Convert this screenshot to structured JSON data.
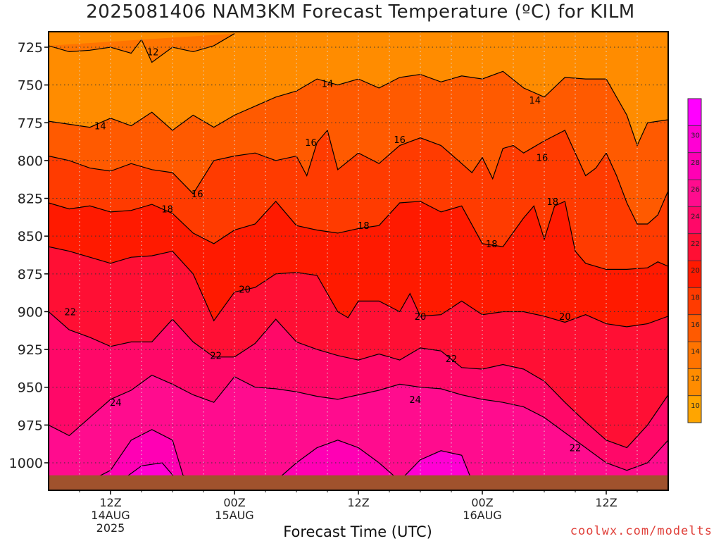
{
  "title": "2025081406 NAM3KM Forecast Temperature (ºC) for KILM",
  "xlabel": "Forecast Time (UTC)",
  "credit": "coolwx.com/modelts",
  "chart_data": {
    "type": "heatmap",
    "title": "2025081406 NAM3KM Forecast Temperature (ºC) for KILM",
    "xlabel": "Forecast Time (UTC)",
    "ylabel": "",
    "y_axis": {
      "ticks": [
        725,
        750,
        775,
        800,
        825,
        850,
        875,
        900,
        925,
        950,
        975,
        1000
      ],
      "range": [
        1015,
        714
      ]
    },
    "x_axis": {
      "ticks": [
        {
          "hour": 12,
          "lines": [
            "12Z",
            "14AUG",
            "2025"
          ]
        },
        {
          "hour": 24,
          "lines": [
            "00Z",
            "15AUG"
          ]
        },
        {
          "hour": 36,
          "lines": [
            "12Z"
          ]
        },
        {
          "hour": 48,
          "lines": [
            "00Z",
            "16AUG"
          ]
        },
        {
          "hour": 60,
          "lines": [
            "12Z"
          ]
        }
      ],
      "range": [
        6,
        66
      ]
    },
    "grid": true,
    "contour_interval": 2,
    "colorbar": {
      "labels": [
        10,
        12,
        14,
        16,
        18,
        20,
        22,
        24,
        26,
        28,
        30
      ],
      "colors": [
        "#ffa500",
        "#ff8c00",
        "#ff7400",
        "#ff5a00",
        "#ff3b00",
        "#ff1a00",
        "#ff0f34",
        "#ff0868",
        "#ff0c8e",
        "#ff00b4",
        "#ff00d4",
        "#ff00ff"
      ]
    },
    "isotherms": [
      {
        "value": 12,
        "pts": [
          [
            6,
            724
          ],
          [
            8,
            728
          ],
          [
            10,
            727
          ],
          [
            12,
            725
          ],
          [
            14,
            729
          ],
          [
            15,
            720
          ],
          [
            16,
            735
          ],
          [
            18,
            725
          ],
          [
            20,
            728
          ],
          [
            22,
            724
          ],
          [
            24,
            716
          ]
        ]
      },
      {
        "value": 14,
        "pts": [
          [
            6,
            774
          ],
          [
            8,
            776
          ],
          [
            10,
            778
          ],
          [
            12,
            772
          ],
          [
            14,
            777
          ],
          [
            16,
            768
          ],
          [
            18,
            780
          ],
          [
            20,
            770
          ],
          [
            22,
            778
          ],
          [
            24,
            770
          ],
          [
            26,
            764
          ],
          [
            28,
            758
          ],
          [
            30,
            754
          ],
          [
            32,
            746
          ],
          [
            34,
            750
          ],
          [
            36,
            746
          ],
          [
            38,
            752
          ],
          [
            40,
            745
          ],
          [
            42,
            743
          ],
          [
            44,
            748
          ],
          [
            46,
            744
          ],
          [
            48,
            746
          ],
          [
            50,
            741
          ],
          [
            52,
            752
          ],
          [
            54,
            758
          ],
          [
            56,
            745
          ],
          [
            58,
            746
          ],
          [
            60,
            746
          ],
          [
            62,
            770
          ],
          [
            63,
            790
          ],
          [
            64,
            775
          ],
          [
            65,
            774
          ],
          [
            66,
            773
          ]
        ]
      },
      {
        "value": 16,
        "pts": [
          [
            6,
            797
          ],
          [
            8,
            800
          ],
          [
            10,
            805
          ],
          [
            12,
            807
          ],
          [
            14,
            802
          ],
          [
            16,
            806
          ],
          [
            18,
            808
          ],
          [
            20,
            822
          ],
          [
            22,
            800
          ],
          [
            24,
            797
          ],
          [
            26,
            795
          ],
          [
            28,
            800
          ],
          [
            30,
            797
          ],
          [
            31,
            810
          ],
          [
            32,
            788
          ],
          [
            33,
            780
          ],
          [
            34,
            806
          ],
          [
            36,
            795
          ],
          [
            38,
            802
          ],
          [
            40,
            790
          ],
          [
            42,
            785
          ],
          [
            44,
            790
          ],
          [
            46,
            802
          ],
          [
            47,
            808
          ],
          [
            48,
            798
          ],
          [
            49,
            812
          ],
          [
            50,
            792
          ],
          [
            51,
            790
          ],
          [
            52,
            795
          ],
          [
            54,
            787
          ],
          [
            56,
            780
          ],
          [
            57,
            795
          ],
          [
            58,
            810
          ],
          [
            59,
            805
          ],
          [
            60,
            795
          ],
          [
            61,
            810
          ],
          [
            62,
            828
          ],
          [
            63,
            842
          ],
          [
            64,
            842
          ],
          [
            65,
            836
          ],
          [
            66,
            820
          ]
        ]
      },
      {
        "value": 18,
        "pts": [
          [
            6,
            828
          ],
          [
            8,
            832
          ],
          [
            10,
            830
          ],
          [
            12,
            834
          ],
          [
            14,
            833
          ],
          [
            16,
            829
          ],
          [
            18,
            835
          ],
          [
            20,
            848
          ],
          [
            22,
            855
          ],
          [
            24,
            846
          ],
          [
            26,
            842
          ],
          [
            28,
            827
          ],
          [
            30,
            843
          ],
          [
            32,
            846
          ],
          [
            34,
            848
          ],
          [
            36,
            845
          ],
          [
            38,
            843
          ],
          [
            40,
            828
          ],
          [
            42,
            827
          ],
          [
            44,
            834
          ],
          [
            46,
            830
          ],
          [
            48,
            855
          ],
          [
            50,
            857
          ],
          [
            52,
            838
          ],
          [
            53,
            830
          ],
          [
            54,
            852
          ],
          [
            55,
            830
          ],
          [
            56,
            827
          ],
          [
            57,
            860
          ],
          [
            58,
            868
          ],
          [
            60,
            872
          ],
          [
            62,
            872
          ],
          [
            64,
            871
          ],
          [
            65,
            867
          ],
          [
            66,
            870
          ]
        ]
      },
      {
        "value": 20,
        "pts": [
          [
            6,
            857
          ],
          [
            8,
            860
          ],
          [
            10,
            864
          ],
          [
            12,
            868
          ],
          [
            14,
            864
          ],
          [
            16,
            863
          ],
          [
            18,
            860
          ],
          [
            20,
            875
          ],
          [
            22,
            906
          ],
          [
            24,
            887
          ],
          [
            26,
            884
          ],
          [
            28,
            875
          ],
          [
            30,
            874
          ],
          [
            32,
            876
          ],
          [
            34,
            900
          ],
          [
            35,
            904
          ],
          [
            36,
            893
          ],
          [
            38,
            893
          ],
          [
            40,
            900
          ],
          [
            41,
            888
          ],
          [
            42,
            903
          ],
          [
            44,
            902
          ],
          [
            46,
            893
          ],
          [
            48,
            902
          ],
          [
            50,
            900
          ],
          [
            52,
            900
          ],
          [
            54,
            903
          ],
          [
            56,
            907
          ],
          [
            58,
            902
          ],
          [
            60,
            908
          ],
          [
            62,
            910
          ],
          [
            64,
            908
          ],
          [
            66,
            903
          ]
        ]
      },
      {
        "value": 22,
        "pts": [
          [
            6,
            900
          ],
          [
            8,
            912
          ],
          [
            10,
            917
          ],
          [
            12,
            923
          ],
          [
            14,
            920
          ],
          [
            16,
            920
          ],
          [
            18,
            905
          ],
          [
            20,
            920
          ],
          [
            22,
            930
          ],
          [
            24,
            930
          ],
          [
            26,
            921
          ],
          [
            28,
            905
          ],
          [
            30,
            920
          ],
          [
            32,
            925
          ],
          [
            34,
            929
          ],
          [
            36,
            932
          ],
          [
            38,
            928
          ],
          [
            40,
            932
          ],
          [
            42,
            924
          ],
          [
            44,
            926
          ],
          [
            46,
            937
          ],
          [
            48,
            938
          ],
          [
            50,
            935
          ],
          [
            52,
            938
          ],
          [
            54,
            946
          ],
          [
            56,
            960
          ],
          [
            58,
            973
          ],
          [
            60,
            985
          ],
          [
            62,
            990
          ],
          [
            64,
            975
          ],
          [
            66,
            955
          ]
        ]
      },
      {
        "value": 24,
        "pts": [
          [
            6,
            975
          ],
          [
            8,
            982
          ],
          [
            10,
            970
          ],
          [
            12,
            958
          ],
          [
            14,
            952
          ],
          [
            16,
            942
          ],
          [
            18,
            948
          ],
          [
            20,
            955
          ],
          [
            22,
            960
          ],
          [
            24,
            943
          ],
          [
            26,
            950
          ],
          [
            28,
            951
          ],
          [
            30,
            953
          ],
          [
            32,
            956
          ],
          [
            34,
            958
          ],
          [
            36,
            955
          ],
          [
            38,
            952
          ],
          [
            40,
            948
          ],
          [
            42,
            950
          ],
          [
            44,
            951
          ],
          [
            46,
            955
          ],
          [
            48,
            958
          ],
          [
            50,
            960
          ],
          [
            52,
            963
          ],
          [
            54,
            970
          ],
          [
            56,
            980
          ],
          [
            58,
            990
          ],
          [
            60,
            1000
          ],
          [
            62,
            1005
          ],
          [
            64,
            1000
          ],
          [
            66,
            985
          ]
        ]
      },
      {
        "value": 26,
        "pts": [
          [
            10,
            1012
          ],
          [
            12,
            1005
          ],
          [
            14,
            985
          ],
          [
            16,
            978
          ],
          [
            18,
            985
          ],
          [
            19,
            1008
          ],
          [
            20,
            1012
          ]
        ]
      },
      {
        "value": 26,
        "pts": [
          [
            28,
            1012
          ],
          [
            30,
            1000
          ],
          [
            32,
            990
          ],
          [
            34,
            985
          ],
          [
            36,
            990
          ],
          [
            38,
            1000
          ],
          [
            40,
            1012
          ]
        ]
      },
      {
        "value": 28,
        "pts": [
          [
            13,
            1012
          ],
          [
            15,
            1002
          ],
          [
            17,
            1000
          ],
          [
            18.5,
            1012
          ]
        ]
      },
      {
        "value": 28,
        "pts": [
          [
            40,
            1012
          ],
          [
            42,
            998
          ],
          [
            44,
            992
          ],
          [
            46,
            995
          ],
          [
            47,
            1012
          ]
        ]
      }
    ],
    "contour_labels": [
      {
        "text": "12",
        "x": 16.1,
        "y": 728
      },
      {
        "text": "14",
        "x": 33.0,
        "y": 749
      },
      {
        "text": "14",
        "x": 53.1,
        "y": 760
      },
      {
        "text": "14",
        "x": 11.0,
        "y": 777
      },
      {
        "text": "16",
        "x": 31.4,
        "y": 788
      },
      {
        "text": "16",
        "x": 40.0,
        "y": 786
      },
      {
        "text": "16",
        "x": 53.8,
        "y": 798
      },
      {
        "text": "16",
        "x": 20.4,
        "y": 822
      },
      {
        "text": "18",
        "x": 17.5,
        "y": 832
      },
      {
        "text": "18",
        "x": 36.5,
        "y": 843
      },
      {
        "text": "18",
        "x": 54.8,
        "y": 827
      },
      {
        "text": "18",
        "x": 48.9,
        "y": 855
      },
      {
        "text": "20",
        "x": 25.0,
        "y": 885
      },
      {
        "text": "20",
        "x": 42.0,
        "y": 903
      },
      {
        "text": "20",
        "x": 56.0,
        "y": 903
      },
      {
        "text": "22",
        "x": 8.1,
        "y": 900
      },
      {
        "text": "22",
        "x": 22.2,
        "y": 929
      },
      {
        "text": "22",
        "x": 45.0,
        "y": 931
      },
      {
        "text": "22",
        "x": 57.0,
        "y": 990
      },
      {
        "text": "24",
        "x": 12.5,
        "y": 960
      },
      {
        "text": "24",
        "x": 41.5,
        "y": 958
      }
    ],
    "ground_level": 1012
  }
}
